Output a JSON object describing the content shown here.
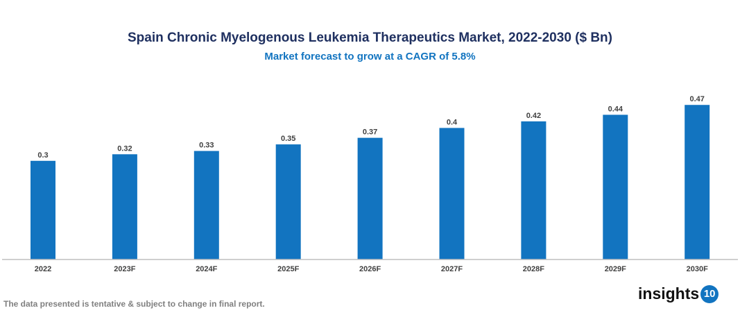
{
  "chart_data": {
    "type": "bar",
    "title": "Spain Chronic Myelogenous Leukemia Therapeutics Market, 2022-2030 ($ Bn)",
    "subtitle": "Market forecast to grow at a CAGR of 5.8%",
    "categories": [
      "2022",
      "2023F",
      "2024F",
      "2025F",
      "2026F",
      "2027F",
      "2028F",
      "2029F",
      "2030F"
    ],
    "values": [
      0.3,
      0.32,
      0.33,
      0.35,
      0.37,
      0.4,
      0.42,
      0.44,
      0.47
    ],
    "xlabel": "",
    "ylabel": "",
    "ylim": [
      0,
      0.5
    ],
    "grid": false,
    "bar_color": "#1274c0"
  },
  "footer": {
    "note": "The data presented is tentative & subject to change in final report."
  },
  "logo": {
    "text": "insights",
    "badge": "10"
  }
}
